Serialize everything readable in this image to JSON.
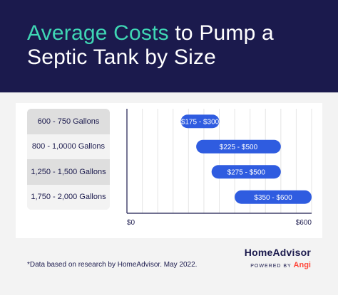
{
  "header": {
    "title_accent": "Average Costs",
    "title_rest": " to Pump a Septic Tank by Size"
  },
  "colors": {
    "header_bg": "#1b1a4d",
    "accent": "#3fd6b4",
    "bar": "#2f5ce0",
    "angi": "#ff4a3d"
  },
  "chart_data": {
    "type": "bar",
    "orientation": "horizontal-range",
    "categories": [
      "600 - 750 Gallons",
      "800 - 1,0000 Gallons",
      "1,250 - 1,500 Gallons",
      "1,750 - 2,000 Gallons"
    ],
    "ranges": [
      [
        175,
        300
      ],
      [
        225,
        500
      ],
      [
        275,
        500
      ],
      [
        350,
        600
      ]
    ],
    "bar_labels": [
      "$175 - $300",
      "$225 - $500",
      "$275 - $500",
      "$350 - $600"
    ],
    "xlim": [
      0,
      600
    ],
    "x_tick_labels": [
      "$0",
      "$600"
    ],
    "grid": true,
    "title": "Average Costs to Pump a Septic Tank by Size"
  },
  "footer": {
    "note": "*Data based on research by HomeAdvisor. May 2022.",
    "brand": "HomeAdvisor",
    "powered_by": "POWERED BY",
    "angi": "Angi"
  }
}
